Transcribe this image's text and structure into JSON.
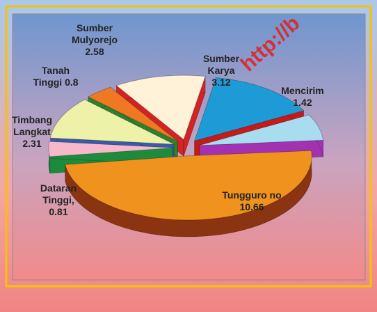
{
  "chart_data": {
    "type": "pie3d",
    "categories": [
      "Sumber Karya",
      "Mencirim",
      "Tungguro no",
      "Dataran Tinggi,",
      "Timbang Langkat",
      "Tanah Tinggi",
      "Sumber Mulyorejo"
    ],
    "values": [
      3.12,
      1.42,
      10.66,
      0.81,
      2.31,
      0.8,
      2.58
    ],
    "colors": [
      "#1e9ad6",
      "#a8dcef",
      "#f0921e",
      "#f7b8cc",
      "#eef2a8",
      "#f07822",
      "#fff2d8"
    ],
    "side_colors": [
      "#c41a1a",
      "#a232b2",
      "#8a3412",
      "#1d8a3c",
      "#3a5aa8",
      "#2f7f2f",
      "#d22424"
    ],
    "watermark": "http://b"
  }
}
